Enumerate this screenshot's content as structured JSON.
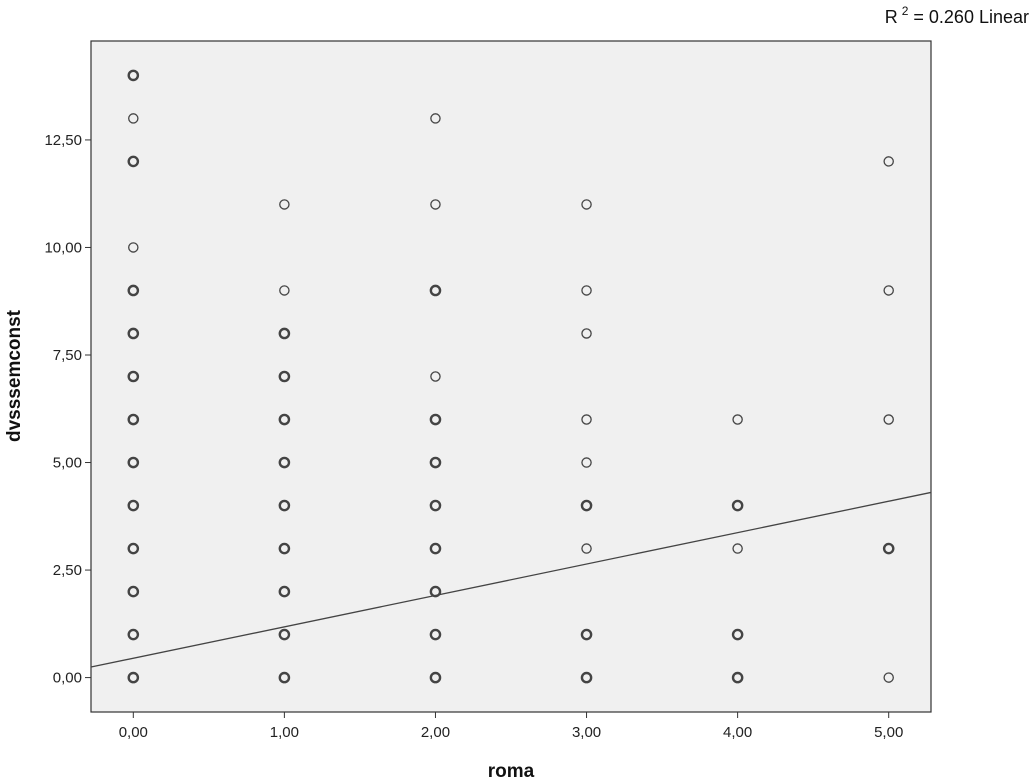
{
  "chart_data": {
    "type": "scatter",
    "title": "",
    "xlabel": "roma",
    "ylabel": "dvsssemconst",
    "xlim": [
      -0.28,
      5.28
    ],
    "ylim": [
      -0.8,
      14.8
    ],
    "x_ticks": [
      0,
      1,
      2,
      3,
      4,
      5
    ],
    "x_tick_labels": [
      "0,00",
      "1,00",
      "2,00",
      "3,00",
      "4,00",
      "5,00"
    ],
    "y_ticks": [
      0,
      2.5,
      5,
      7.5,
      10,
      12.5
    ],
    "y_tick_labels": [
      "0,00",
      "2,50",
      "5,00",
      "7,50",
      "10,00",
      "12,50"
    ],
    "grid": false,
    "points": [
      {
        "x": 0,
        "y": 14,
        "repeated": true
      },
      {
        "x": 0,
        "y": 13,
        "repeated": false
      },
      {
        "x": 0,
        "y": 12,
        "repeated": true
      },
      {
        "x": 0,
        "y": 10,
        "repeated": false
      },
      {
        "x": 0,
        "y": 9,
        "repeated": true
      },
      {
        "x": 0,
        "y": 8,
        "repeated": true
      },
      {
        "x": 0,
        "y": 7,
        "repeated": true
      },
      {
        "x": 0,
        "y": 6,
        "repeated": true
      },
      {
        "x": 0,
        "y": 5,
        "repeated": true
      },
      {
        "x": 0,
        "y": 4,
        "repeated": true
      },
      {
        "x": 0,
        "y": 3,
        "repeated": true
      },
      {
        "x": 0,
        "y": 2,
        "repeated": true
      },
      {
        "x": 0,
        "y": 1,
        "repeated": true
      },
      {
        "x": 0,
        "y": 0,
        "repeated": true
      },
      {
        "x": 1,
        "y": 11,
        "repeated": false
      },
      {
        "x": 1,
        "y": 9,
        "repeated": false
      },
      {
        "x": 1,
        "y": 8,
        "repeated": true
      },
      {
        "x": 1,
        "y": 7,
        "repeated": true
      },
      {
        "x": 1,
        "y": 6,
        "repeated": true
      },
      {
        "x": 1,
        "y": 5,
        "repeated": true
      },
      {
        "x": 1,
        "y": 4,
        "repeated": true
      },
      {
        "x": 1,
        "y": 3,
        "repeated": true
      },
      {
        "x": 1,
        "y": 2,
        "repeated": true
      },
      {
        "x": 1,
        "y": 1,
        "repeated": true
      },
      {
        "x": 1,
        "y": 0,
        "repeated": true
      },
      {
        "x": 2,
        "y": 13,
        "repeated": false
      },
      {
        "x": 2,
        "y": 11,
        "repeated": false
      },
      {
        "x": 2,
        "y": 9,
        "repeated": true
      },
      {
        "x": 2,
        "y": 7,
        "repeated": false
      },
      {
        "x": 2,
        "y": 6,
        "repeated": true
      },
      {
        "x": 2,
        "y": 5,
        "repeated": true
      },
      {
        "x": 2,
        "y": 4,
        "repeated": true
      },
      {
        "x": 2,
        "y": 3,
        "repeated": true
      },
      {
        "x": 2,
        "y": 2,
        "repeated": true
      },
      {
        "x": 2,
        "y": 1,
        "repeated": true
      },
      {
        "x": 2,
        "y": 0,
        "repeated": true
      },
      {
        "x": 3,
        "y": 11,
        "repeated": false
      },
      {
        "x": 3,
        "y": 9,
        "repeated": false
      },
      {
        "x": 3,
        "y": 8,
        "repeated": false
      },
      {
        "x": 3,
        "y": 6,
        "repeated": false
      },
      {
        "x": 3,
        "y": 5,
        "repeated": false
      },
      {
        "x": 3,
        "y": 4,
        "repeated": true
      },
      {
        "x": 3,
        "y": 3,
        "repeated": false
      },
      {
        "x": 3,
        "y": 1,
        "repeated": true
      },
      {
        "x": 3,
        "y": 0,
        "repeated": true
      },
      {
        "x": 4,
        "y": 6,
        "repeated": false
      },
      {
        "x": 4,
        "y": 4,
        "repeated": true
      },
      {
        "x": 4,
        "y": 3,
        "repeated": false
      },
      {
        "x": 4,
        "y": 1,
        "repeated": true
      },
      {
        "x": 4,
        "y": 0,
        "repeated": true
      },
      {
        "x": 5,
        "y": 12,
        "repeated": false
      },
      {
        "x": 5,
        "y": 9,
        "repeated": false
      },
      {
        "x": 5,
        "y": 6,
        "repeated": false
      },
      {
        "x": 5,
        "y": 3,
        "repeated": true
      },
      {
        "x": 5,
        "y": 0,
        "repeated": false
      }
    ],
    "fit_line": {
      "type": "linear",
      "intercept": 0.45,
      "slope": 0.73
    },
    "legend": {
      "position": "top-right",
      "prefix": "R",
      "superscript": "2",
      "suffix": " = 0.260 Linear"
    },
    "colors": {
      "plot_background": "#f0f0f0",
      "frame": "#333333",
      "marker_stroke": "#444444",
      "fit_line": "#444444"
    }
  }
}
